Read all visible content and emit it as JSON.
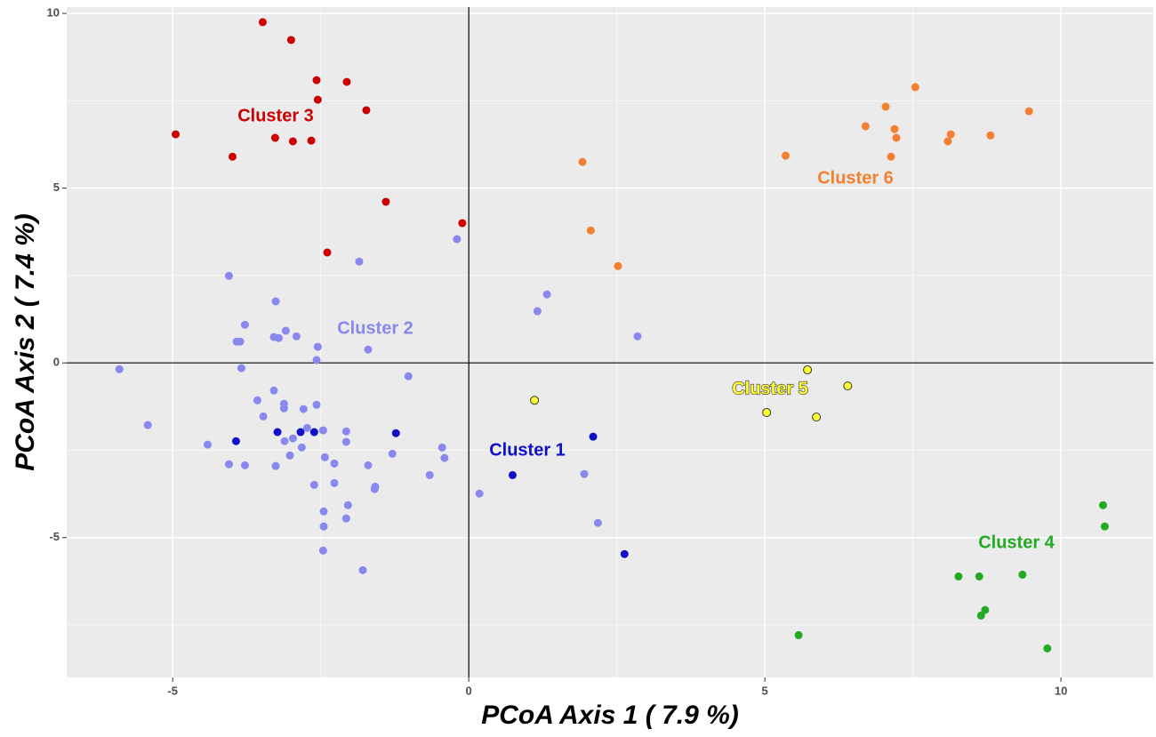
{
  "chart_data": {
    "type": "scatter",
    "xlabel": "PCoA Axis 1 ( 7.9 %)",
    "ylabel": "PCoA Axis 2 ( 7.4 %)",
    "xlim": [
      -6.79,
      11.56
    ],
    "ylim": [
      -9.0,
      10.18
    ],
    "xticks": [
      -5,
      0,
      5,
      10
    ],
    "yticks": [
      -5,
      0,
      5,
      10
    ],
    "xminorticks": [
      -2.5,
      2.5,
      7.5
    ],
    "yminorticks": [
      -7.5,
      -2.5,
      2.5,
      7.5
    ],
    "grid": true,
    "hline": 0,
    "vline": 0,
    "background": "#ebebeb",
    "series": [
      {
        "name": "Cluster 1",
        "color": "#1010c8",
        "x": [
          -3.93,
          -3.23,
          -2.84,
          -2.61,
          -1.23,
          2.1,
          0.74,
          2.63
        ],
        "y": [
          -2.24,
          -1.98,
          -1.98,
          -1.98,
          -2.01,
          -2.11,
          -3.21,
          -5.47
        ]
      },
      {
        "name": "Cluster 2",
        "color": "#8888ee",
        "x": [
          -0.2,
          -1.85,
          -4.05,
          1.32,
          -3.26,
          1.16,
          -3.78,
          -3.09,
          2.85,
          -3.29,
          -3.21,
          -2.91,
          -3.92,
          -3.86,
          -2.55,
          -1.7,
          -2.57,
          -5.9,
          -3.84,
          -1.02,
          -3.29,
          -3.57,
          -3.12,
          -3.12,
          -2.57,
          -2.79,
          -3.47,
          -5.42,
          -2.73,
          -2.46,
          -2.07,
          -3.11,
          -2.97,
          -2.07,
          -4.41,
          -2.82,
          -0.45,
          -0.41,
          -1.29,
          -2.43,
          -3.02,
          -2.27,
          -4.05,
          -3.78,
          -3.26,
          -1.7,
          -0.66,
          1.95,
          -2.61,
          -2.27,
          -1.58,
          -1.59,
          0.18,
          -2.04,
          -2.45,
          -2.07,
          2.18,
          -2.45,
          -2.46,
          -1.79
        ],
        "y": [
          3.54,
          2.9,
          2.49,
          1.96,
          1.76,
          1.48,
          1.09,
          0.92,
          0.76,
          0.74,
          0.71,
          0.76,
          0.61,
          0.61,
          0.46,
          0.38,
          0.08,
          -0.18,
          -0.15,
          -0.38,
          -0.79,
          -1.07,
          -1.17,
          -1.3,
          -1.2,
          -1.32,
          -1.53,
          -1.78,
          -1.86,
          -1.93,
          -1.96,
          -2.24,
          -2.16,
          -2.26,
          -2.34,
          -2.42,
          -2.42,
          -2.72,
          -2.6,
          -2.7,
          -2.65,
          -2.88,
          -2.9,
          -2.93,
          -2.95,
          -2.93,
          -3.21,
          -3.18,
          -3.49,
          -3.44,
          -3.54,
          -3.61,
          -3.74,
          -4.07,
          -4.25,
          -4.45,
          -4.58,
          -4.68,
          -5.37,
          -5.93
        ]
      },
      {
        "name": "Cluster 3",
        "color": "#cc0000",
        "x": [
          -3.48,
          -3.0,
          -2.57,
          -2.06,
          -2.55,
          -1.73,
          -4.95,
          -3.27,
          -2.97,
          -2.66,
          -3.99,
          -1.4,
          -0.11,
          -2.39
        ],
        "y": [
          9.75,
          9.24,
          8.09,
          8.04,
          7.53,
          7.23,
          6.54,
          6.44,
          6.34,
          6.36,
          5.9,
          4.61,
          4.0,
          3.16
        ]
      },
      {
        "name": "Cluster 4",
        "color": "#22aa22",
        "x": [
          10.71,
          10.74,
          8.27,
          8.62,
          9.35,
          8.72,
          8.65,
          5.57,
          9.77
        ],
        "y": [
          -4.07,
          -4.68,
          -6.11,
          -6.11,
          -6.06,
          -7.07,
          -7.23,
          -7.79,
          -8.17
        ]
      },
      {
        "name": "Cluster 5",
        "color": "#ffff33",
        "edgecolor": "#333333",
        "x": [
          5.72,
          6.4,
          1.11,
          5.03,
          5.87
        ],
        "y": [
          -0.2,
          -0.66,
          -1.07,
          -1.42,
          -1.55
        ]
      },
      {
        "name": "Cluster 6",
        "color": "#f28030",
        "x": [
          7.54,
          9.46,
          7.04,
          6.7,
          7.19,
          7.22,
          8.14,
          8.09,
          8.81,
          5.35,
          7.13,
          1.92,
          2.06,
          2.52
        ],
        "y": [
          7.89,
          7.2,
          7.33,
          6.77,
          6.69,
          6.44,
          6.54,
          6.34,
          6.51,
          5.93,
          5.9,
          5.75,
          3.79,
          2.77
        ]
      }
    ]
  }
}
